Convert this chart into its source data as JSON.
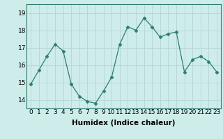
{
  "x": [
    0,
    1,
    2,
    3,
    4,
    5,
    6,
    7,
    8,
    9,
    10,
    11,
    12,
    13,
    14,
    15,
    16,
    17,
    18,
    19,
    20,
    21,
    22,
    23
  ],
  "y": [
    14.9,
    15.7,
    16.5,
    17.2,
    16.8,
    14.9,
    14.2,
    13.9,
    13.8,
    14.5,
    15.3,
    17.2,
    18.2,
    18.0,
    18.7,
    18.2,
    17.6,
    17.8,
    17.9,
    15.6,
    16.3,
    16.5,
    16.2,
    15.6
  ],
  "xlabel": "Humidex (Indice chaleur)",
  "ylim": [
    13.5,
    19.5
  ],
  "xlim": [
    -0.5,
    23.5
  ],
  "bg_color": "#ceecea",
  "line_color": "#2e7d6e",
  "marker": "D",
  "marker_size": 2.5,
  "grid_color": "#b8d8d6",
  "tick_label_fontsize": 6.5,
  "xlabel_fontsize": 7.5,
  "yticks": [
    14,
    15,
    16,
    17,
    18,
    19
  ],
  "xticks": [
    0,
    1,
    2,
    3,
    4,
    5,
    6,
    7,
    8,
    9,
    10,
    11,
    12,
    13,
    14,
    15,
    16,
    17,
    18,
    19,
    20,
    21,
    22,
    23
  ]
}
